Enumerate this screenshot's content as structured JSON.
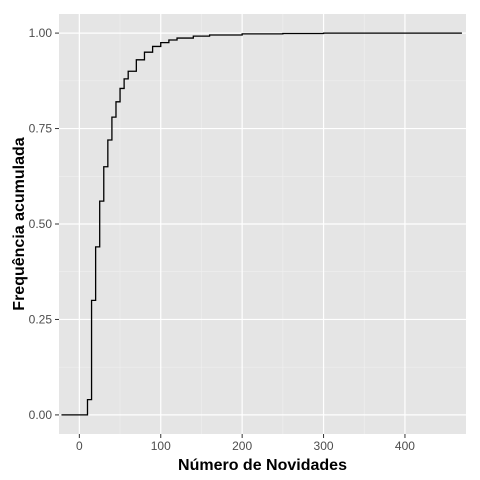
{
  "chart_data": {
    "type": "line",
    "subtype": "step-ecdf",
    "title": "",
    "xlabel": "Número de Novidades",
    "ylabel": "Frequência acumulada",
    "xlim": [
      -25,
      475
    ],
    "ylim": [
      -0.05,
      1.05
    ],
    "x_ticks": [
      0,
      100,
      200,
      300,
      400
    ],
    "x_tick_labels": [
      "0",
      "100",
      "200",
      "300",
      "400"
    ],
    "y_ticks": [
      0.0,
      0.25,
      0.5,
      0.75,
      1.0
    ],
    "y_tick_labels": [
      "0.00",
      "0.25",
      "0.50",
      "0.75",
      "1.00"
    ],
    "grid": true,
    "legend": "none",
    "colors": {
      "panel_background": "#e5e5e5",
      "grid_major": "#ffffff",
      "grid_minor": "#f0f0f0",
      "line": "#000000"
    },
    "series": [
      {
        "x": [
          -22,
          10,
          10,
          15,
          20,
          25,
          30,
          35,
          40,
          45,
          50,
          55,
          60,
          70,
          80,
          90,
          100,
          110,
          120,
          140,
          160,
          200,
          250,
          300,
          350,
          400,
          470
        ],
        "y": [
          0.0,
          0.0,
          0.04,
          0.3,
          0.44,
          0.56,
          0.65,
          0.72,
          0.78,
          0.82,
          0.855,
          0.88,
          0.9,
          0.93,
          0.95,
          0.965,
          0.975,
          0.982,
          0.987,
          0.992,
          0.995,
          0.998,
          0.999,
          1.0,
          1.0,
          1.0,
          1.0
        ]
      }
    ]
  }
}
